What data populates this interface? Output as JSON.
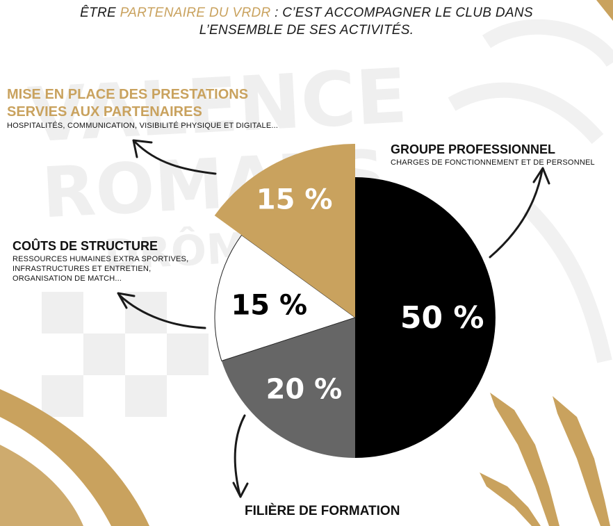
{
  "header": {
    "line1_before": "ÊTRE",
    "line1_accent": "PARTENAIRE DU VRDR",
    "line1_after": ": C’EST ACCOMPAGNER LE CLUB DANS",
    "line2": "L’ENSEMBLE DE SES ACTIVITÉS."
  },
  "colors": {
    "gold": "#c9a25e",
    "black": "#000000",
    "grey": "#666666",
    "white": "#ffffff",
    "watermark": "#efefef"
  },
  "watermark_text": [
    "VALENCE",
    "ROMANS",
    "DRÔME RUGBY"
  ],
  "blocks": {
    "presta": {
      "title_line1": "MISE EN PLACE DES PRESTATIONS",
      "title_line2": "SERVIES AUX PARTENAIRES",
      "subtitle": "HOSPITALITÉS, COMMUNICATION, VISIBILITÉ PHYSIQUE ET DIGITALE..."
    },
    "groupe": {
      "title": "GROUPE PROFESSIONNEL",
      "subtitle": "CHARGES DE FONCTIONNEMENT ET DE PERSONNEL"
    },
    "couts": {
      "title": "COÛTS DE STRUCTURE",
      "sub1": "RESSOURCES HUMAINES EXTRA SPORTIVES,",
      "sub2": "INFRASTRUCTURES ET ENTRETIEN,",
      "sub3": "ORGANISATION DE MATCH..."
    },
    "filiere": {
      "title": "FILIÈRE DE FORMATION"
    }
  },
  "chart_data": {
    "type": "pie",
    "title": "",
    "start": "top, clockwise",
    "slices": [
      {
        "name": "GROUPE PROFESSIONNEL",
        "value": 50,
        "label": "50 %",
        "color": "#000000",
        "label_color": "#ffffff",
        "exploded": false
      },
      {
        "name": "FILIÈRE DE FORMATION",
        "value": 20,
        "label": "20 %",
        "color": "#666666",
        "label_color": "#ffffff",
        "exploded": false
      },
      {
        "name": "COÛTS DE STRUCTURE",
        "value": 15,
        "label": "15 %",
        "color": "#ffffff",
        "label_color": "#000000",
        "exploded": false
      },
      {
        "name": "MISE EN PLACE DES PRESTATIONS SERVIES AUX PARTENAIRES",
        "value": 15,
        "label": "15 %",
        "color": "#c9a25e",
        "label_color": "#ffffff",
        "exploded": true
      }
    ]
  }
}
